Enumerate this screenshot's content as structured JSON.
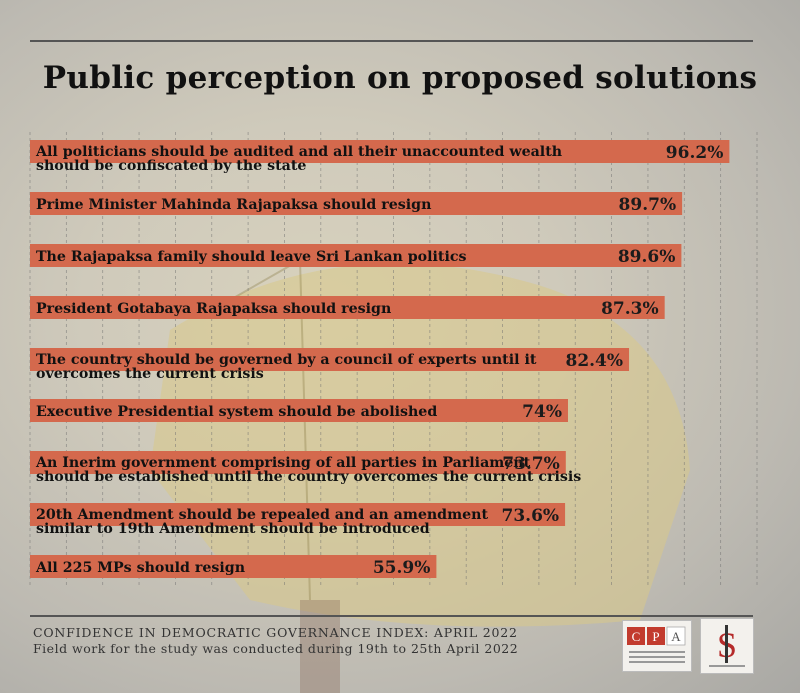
{
  "title": "Public perception on proposed solutions",
  "footer": {
    "line1": "CONFIDENCE IN DEMOCRATIC GOVERNANCE INDEX: APRIL 2022",
    "line2": "Field work for the study was conducted during 19th to 25th April 2022"
  },
  "logos": {
    "cpa": {
      "letters": [
        "C",
        "P",
        "A"
      ],
      "name": "Centre for Policy Alternatives"
    },
    "ssr": {
      "mark": "S",
      "name": "Social Scientists' Research Centre"
    }
  },
  "colors": {
    "bar": "#d4694d",
    "grid": "#6f6f6f",
    "text": "#111111"
  },
  "chart_data": {
    "type": "bar",
    "orientation": "horizontal",
    "xlim": [
      0,
      100
    ],
    "grid": true,
    "categories": [
      [
        "All politicians should be audited and all their unaccounted wealth",
        "should be confiscated by the state"
      ],
      [
        "Prime Minister Mahinda Rajapaksa should resign"
      ],
      [
        "The Rajapaksa family should leave Sri Lankan politics"
      ],
      [
        "President Gotabaya Rajapaksa should resign"
      ],
      [
        "The country should be governed by a council of experts until it",
        "overcomes the current crisis"
      ],
      [
        "Executive Presidential system should be abolished"
      ],
      [
        "An Inerim government comprising of all parties in Parliament",
        "should be established until the country overcomes the current crisis"
      ],
      [
        "20th Amendment should be repealed and an amendment",
        "similar to 19th Amendment should be introduced"
      ],
      [
        "All 225 MPs should resign"
      ]
    ],
    "values": [
      96.2,
      89.7,
      89.6,
      87.3,
      82.4,
      74,
      73.7,
      73.6,
      55.9
    ],
    "value_labels": [
      "96.2%",
      "89.7%",
      "89.6%",
      "87.3%",
      "82.4%",
      "74%",
      "73.7%",
      "73.6%",
      "55.9%"
    ]
  }
}
